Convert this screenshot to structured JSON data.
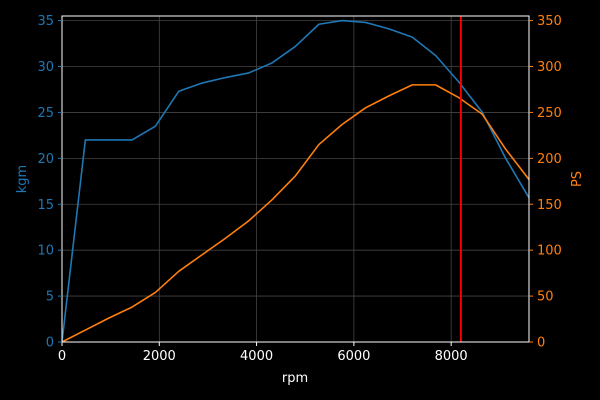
{
  "chart_data": {
    "type": "line",
    "xlabel": "rpm",
    "ylabel_left": "kgm",
    "ylabel_right": "PS",
    "xlim": [
      0,
      9600
    ],
    "ylim_left": [
      0,
      35.5
    ],
    "ylim_right": [
      0,
      355
    ],
    "x_ticks": [
      0,
      2000,
      4000,
      6000,
      8000
    ],
    "y_left_ticks": [
      0,
      5,
      10,
      15,
      20,
      25,
      30,
      35
    ],
    "y_right_ticks": [
      0,
      50,
      100,
      150,
      200,
      250,
      300,
      350
    ],
    "grid": true,
    "series": [
      {
        "axis": "left",
        "color": "#1f77b4",
        "x": [
          0,
          480,
          960,
          1440,
          1920,
          2400,
          2880,
          3360,
          3840,
          4320,
          4800,
          5280,
          5760,
          6240,
          6720,
          7200,
          7680,
          8160,
          8640,
          9120,
          9600
        ],
        "values": [
          0,
          22.0,
          22.0,
          22.0,
          23.5,
          27.3,
          28.2,
          28.8,
          29.3,
          30.4,
          32.2,
          34.6,
          35.0,
          34.8,
          34.1,
          33.2,
          31.2,
          28.3,
          25.0,
          20.0,
          15.7
        ]
      },
      {
        "axis": "right",
        "color": "#ff7f0e",
        "x": [
          0,
          480,
          960,
          1440,
          1920,
          2400,
          2880,
          3360,
          3840,
          4320,
          4800,
          5280,
          5760,
          6240,
          6720,
          7200,
          7680,
          8160,
          8640,
          9120,
          9600
        ],
        "values": [
          0,
          13,
          26,
          38,
          54,
          77,
          95,
          113,
          132,
          155,
          181,
          215,
          237,
          255,
          268,
          280,
          280,
          266,
          248,
          210,
          177
        ]
      }
    ],
    "annotations": [
      {
        "type": "vline",
        "x": 8200,
        "color": "#ff0000"
      }
    ]
  }
}
